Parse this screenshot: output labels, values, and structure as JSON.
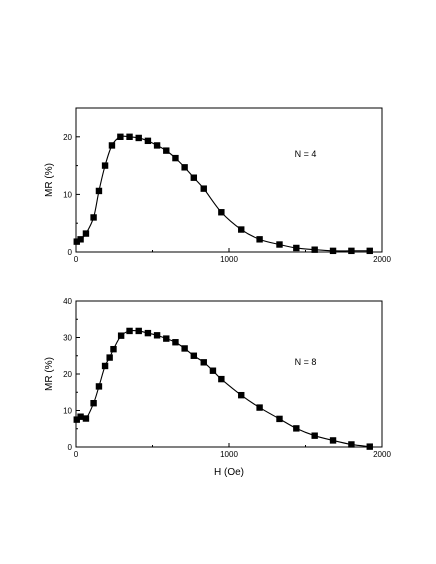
{
  "chart_data": [
    {
      "type": "scatter",
      "title": "",
      "xlabel": "",
      "ylabel": "MR (%)",
      "annotation": "N = 4",
      "xlim": [
        0,
        2000
      ],
      "ylim": [
        0,
        25
      ],
      "x_ticks": [
        0,
        1000,
        2000
      ],
      "x_tick_labels": [
        "0",
        "1000",
        "2000"
      ],
      "y_ticks": [
        0,
        10,
        20
      ],
      "y_tick_labels": [
        "0",
        "10",
        "20"
      ],
      "grid": false,
      "series": [
        {
          "x": [
            5,
            30,
            65,
            115,
            150,
            190,
            235,
            290,
            350,
            410,
            470,
            530,
            590,
            650,
            710,
            770,
            835,
            950,
            1080,
            1200,
            1330,
            1440,
            1560,
            1680,
            1800,
            1920
          ],
          "y": [
            1.8,
            2.2,
            3.2,
            6.0,
            10.6,
            15.0,
            18.5,
            20.0,
            20.0,
            19.8,
            19.3,
            18.5,
            17.6,
            16.3,
            14.7,
            12.9,
            11.0,
            6.9,
            3.9,
            2.2,
            1.3,
            0.7,
            0.4,
            0.2,
            0.2,
            0.2
          ]
        }
      ]
    },
    {
      "type": "scatter",
      "title": "",
      "xlabel": "H (Oe)",
      "ylabel": "MR (%)",
      "annotation": "N = 8",
      "xlim": [
        0,
        2000
      ],
      "ylim": [
        0,
        40
      ],
      "x_ticks": [
        0,
        1000,
        2000
      ],
      "x_tick_labels": [
        "0",
        "1000",
        "2000"
      ],
      "y_ticks": [
        0,
        10,
        20,
        30,
        40
      ],
      "y_tick_labels": [
        "0",
        "10",
        "20",
        "30",
        "40"
      ],
      "grid": false,
      "series": [
        {
          "x": [
            5,
            30,
            65,
            115,
            150,
            190,
            220,
            245,
            295,
            350,
            410,
            470,
            530,
            590,
            650,
            710,
            770,
            835,
            895,
            950,
            1080,
            1200,
            1330,
            1440,
            1560,
            1680,
            1800,
            1920
          ],
          "y": [
            7.5,
            8.3,
            7.8,
            12.0,
            16.6,
            22.2,
            24.5,
            26.8,
            30.5,
            31.8,
            31.8,
            31.2,
            30.6,
            29.7,
            28.7,
            27.0,
            25.0,
            23.2,
            20.9,
            18.6,
            14.2,
            10.8,
            7.7,
            5.1,
            3.1,
            1.8,
            0.7,
            0.1
          ]
        }
      ]
    }
  ]
}
